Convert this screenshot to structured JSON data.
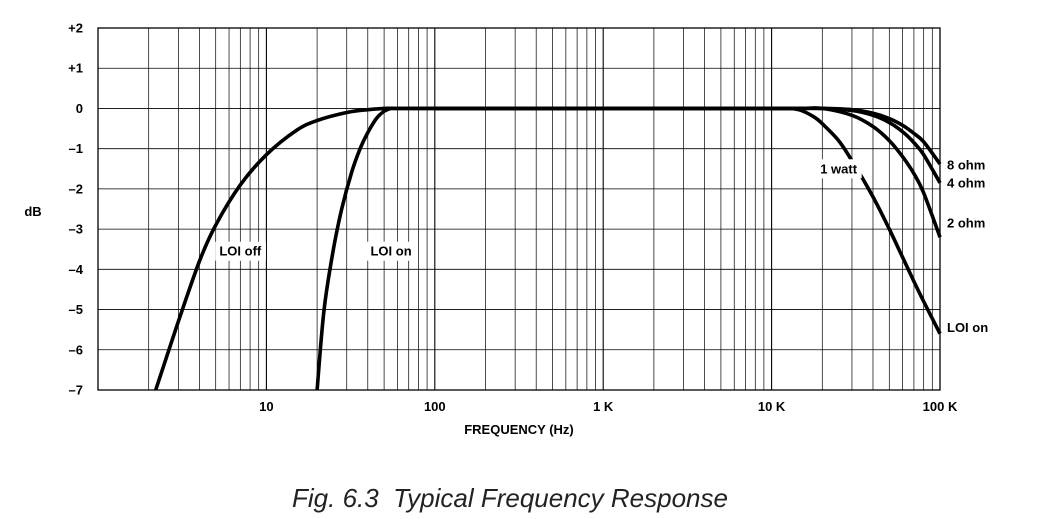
{
  "chart_data": {
    "type": "line",
    "title": "",
    "caption": "Fig. 6.3  Typical Frequency Response",
    "xlabel": "FREQUENCY (Hz)",
    "ylabel": "dB",
    "x_scale": "log",
    "xlim": [
      1,
      100000
    ],
    "ylim": [
      -7,
      2
    ],
    "grid": true,
    "y_ticks": [
      {
        "value": 2,
        "label": "+2"
      },
      {
        "value": 1,
        "label": "+1"
      },
      {
        "value": 0,
        "label": "0"
      },
      {
        "value": -1,
        "label": "–1"
      },
      {
        "value": -2,
        "label": "–2"
      },
      {
        "value": -3,
        "label": "–3"
      },
      {
        "value": -4,
        "label": "–4"
      },
      {
        "value": -5,
        "label": "–5"
      },
      {
        "value": -6,
        "label": "–6"
      },
      {
        "value": -7,
        "label": "–7"
      }
    ],
    "x_ticks": [
      {
        "value": 10,
        "label": "10"
      },
      {
        "value": 100,
        "label": "100"
      },
      {
        "value": 1000,
        "label": "1 K"
      },
      {
        "value": 10000,
        "label": "10 K"
      },
      {
        "value": 100000,
        "label": "100 K"
      }
    ],
    "series": [
      {
        "name": "LOI off",
        "x": [
          2.2,
          3,
          4,
          5,
          7,
          10,
          15,
          20,
          30,
          40,
          50,
          55,
          60,
          100
        ],
        "y": [
          -7,
          -5.3,
          -3.8,
          -2.9,
          -1.9,
          -1.15,
          -0.55,
          -0.3,
          -0.1,
          -0.03,
          0,
          0,
          0,
          0
        ]
      },
      {
        "name": "LOI on",
        "x": [
          20,
          22,
          25,
          28,
          32,
          36,
          40,
          45,
          50,
          55,
          60,
          100
        ],
        "y": [
          -7,
          -5,
          -3.5,
          -2.5,
          -1.6,
          -1.0,
          -0.6,
          -0.25,
          -0.07,
          0,
          0,
          0
        ]
      },
      {
        "name": "8 ohm",
        "x": [
          100,
          10000,
          15000,
          20000,
          30000,
          40000,
          50000,
          60000,
          70000,
          80000,
          100000
        ],
        "y": [
          0,
          0,
          0,
          0,
          -0.03,
          -0.12,
          -0.25,
          -0.42,
          -0.62,
          -0.83,
          -1.38
        ]
      },
      {
        "name": "4 ohm",
        "x": [
          100,
          10000,
          15000,
          20000,
          30000,
          40000,
          50000,
          60000,
          70000,
          80000,
          100000
        ],
        "y": [
          0,
          0,
          0,
          0,
          -0.05,
          -0.17,
          -0.35,
          -0.58,
          -0.85,
          -1.15,
          -1.85
        ]
      },
      {
        "name": "2 ohm",
        "x": [
          100,
          10000,
          15000,
          20000,
          30000,
          40000,
          50000,
          60000,
          70000,
          80000,
          100000
        ],
        "y": [
          0,
          0,
          0,
          0,
          -0.17,
          -0.45,
          -0.8,
          -1.2,
          -1.62,
          -2.1,
          -3.2
        ]
      },
      {
        "name": "1 watt / LOI on",
        "x": [
          100,
          10000,
          13000,
          15000,
          18000,
          20000,
          25000,
          30000,
          40000,
          50000,
          60000,
          70000,
          80000,
          100000
        ],
        "y": [
          0,
          0,
          0,
          -0.05,
          -0.22,
          -0.38,
          -0.8,
          -1.3,
          -2.2,
          -3.0,
          -3.7,
          -4.3,
          -4.8,
          -5.6
        ]
      }
    ],
    "annotations": [
      {
        "text": "LOI  off",
        "x": 7,
        "y": -3.55
      },
      {
        "text": "LOI  on",
        "x": 55,
        "y": -3.55
      },
      {
        "text": "1 watt",
        "x": 25000,
        "y": -1.5
      },
      {
        "text": "8 ohm",
        "x": 100000,
        "y": -1.4
      },
      {
        "text": "4 ohm",
        "x": 100000,
        "y": -1.85
      },
      {
        "text": "2 ohm",
        "x": 100000,
        "y": -2.85
      },
      {
        "text": "LOI on",
        "x": 100000,
        "y": -5.45
      }
    ]
  }
}
